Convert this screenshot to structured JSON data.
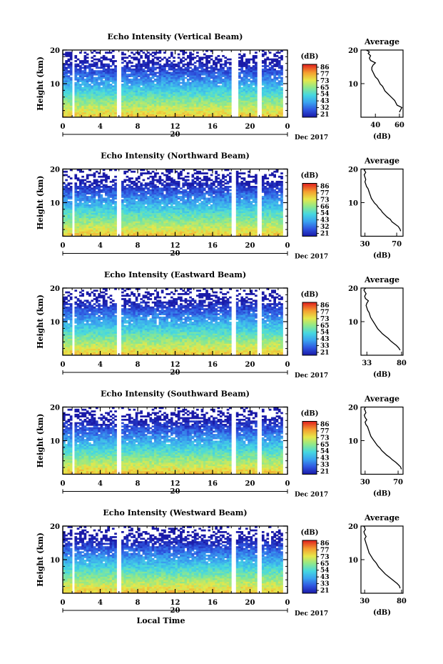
{
  "chart_data": [
    {
      "type": "heatmap",
      "title": "Echo Intensity (Vertical Beam)",
      "ylabel": "Height (km)",
      "x_ticks": [
        "0",
        "4",
        "8",
        "12",
        "16",
        "20",
        "0"
      ],
      "ylim": [
        0,
        20
      ],
      "y_ticks": [
        "20",
        "10"
      ],
      "date_tick": "20",
      "date_label": "Dec 2017",
      "data_gaps_hours": [
        [
          1.0,
          1.3
        ],
        [
          5.8,
          6.2
        ],
        [
          18.1,
          18.8
        ],
        [
          20.7,
          21.3
        ],
        [
          23.6,
          23.9
        ]
      ],
      "colorbar": {
        "label": "(dB)",
        "ticks": [
          "86",
          "77",
          "73",
          "65",
          "54",
          "43",
          "32",
          "21"
        ]
      },
      "average_profile": {
        "title": "Average",
        "xlabel": "(dB)",
        "x_ticks": [
          "40",
          "60"
        ],
        "xlim": [
          28,
          63
        ],
        "y_ticks": [
          "20",
          "10"
        ],
        "x": [
          60,
          61,
          62,
          58,
          57,
          56,
          54,
          52,
          50,
          48,
          47,
          46,
          44,
          43,
          42,
          40,
          39,
          38,
          37,
          37,
          38,
          40,
          36,
          35,
          36,
          34,
          35,
          34,
          33,
          34
        ],
        "y": [
          1.5,
          2.2,
          2.9,
          3.6,
          4.3,
          5.0,
          5.7,
          6.4,
          7.1,
          7.8,
          8.5,
          9.2,
          9.9,
          10.6,
          11.3,
          12.0,
          12.7,
          13.4,
          14.1,
          14.8,
          15.5,
          16.2,
          16.9,
          17.6,
          18.3,
          19.0,
          19.4,
          19.7,
          19.9,
          20.0
        ]
      }
    },
    {
      "type": "heatmap",
      "title": "Echo Intensity (Northward Beam)",
      "ylabel": "Height (km)",
      "x_ticks": [
        "0",
        "4",
        "8",
        "12",
        "16",
        "20",
        "0"
      ],
      "ylim": [
        0,
        20
      ],
      "y_ticks": [
        "20",
        "10"
      ],
      "date_tick": "20",
      "date_label": "Dec 2017",
      "data_gaps_hours": [
        [
          1.0,
          1.3
        ],
        [
          5.8,
          6.2
        ],
        [
          17.9,
          18.6
        ],
        [
          20.7,
          21.3
        ],
        [
          23.6,
          23.9
        ]
      ],
      "colorbar": {
        "label": "(dB)",
        "ticks": [
          "86",
          "77",
          "73",
          "66",
          "54",
          "43",
          "32",
          "21"
        ]
      },
      "average_profile": {
        "title": "Average",
        "xlabel": "(dB)",
        "x_ticks": [
          "30",
          "70"
        ],
        "xlim": [
          25,
          78
        ],
        "y_ticks": [
          "20",
          "10"
        ],
        "x": [
          75,
          74,
          72,
          68,
          64,
          62,
          58,
          55,
          52,
          50,
          47,
          45,
          42,
          40,
          38,
          37,
          36,
          35,
          34,
          32,
          31,
          30,
          31,
          30,
          29,
          31,
          30,
          29,
          30,
          30
        ],
        "y": [
          1.5,
          2.2,
          2.9,
          3.6,
          4.3,
          5.0,
          5.7,
          6.4,
          7.1,
          7.8,
          8.5,
          9.2,
          9.9,
          10.6,
          11.3,
          12.0,
          12.7,
          13.4,
          14.1,
          14.8,
          15.5,
          16.2,
          16.9,
          17.6,
          18.3,
          19.0,
          19.4,
          19.7,
          19.9,
          20.0
        ]
      }
    },
    {
      "type": "heatmap",
      "title": "Echo Intensity (Eastward Beam)",
      "ylabel": "Height (km)",
      "x_ticks": [
        "0",
        "4",
        "8",
        "12",
        "16",
        "20",
        "0"
      ],
      "ylim": [
        0,
        20
      ],
      "y_ticks": [
        "20",
        "10"
      ],
      "date_tick": "20",
      "date_label": "Dec 2017",
      "data_gaps_hours": [
        [
          1.0,
          1.3
        ],
        [
          5.8,
          6.2
        ],
        [
          17.9,
          18.6
        ],
        [
          20.7,
          21.3
        ],
        [
          23.6,
          23.9
        ]
      ],
      "colorbar": {
        "label": "(dB)",
        "ticks": [
          "86",
          "77",
          "73",
          "65",
          "54",
          "43",
          "33",
          "21"
        ]
      },
      "average_profile": {
        "title": "Average",
        "xlabel": "(dB)",
        "x_ticks": [
          "33",
          "80"
        ],
        "xlim": [
          25,
          82
        ],
        "y_ticks": [
          "20",
          "10"
        ],
        "x": [
          78,
          76,
          73,
          69,
          65,
          62,
          58,
          54,
          51,
          48,
          46,
          44,
          42,
          40,
          38,
          37,
          36,
          34,
          33,
          32,
          33,
          35,
          31,
          30,
          32,
          30,
          29,
          30,
          31,
          30
        ],
        "y": [
          1.5,
          2.2,
          2.9,
          3.6,
          4.3,
          5.0,
          5.7,
          6.4,
          7.1,
          7.8,
          8.5,
          9.2,
          9.9,
          10.6,
          11.3,
          12.0,
          12.7,
          13.4,
          14.1,
          14.8,
          15.5,
          16.2,
          16.9,
          17.6,
          18.3,
          19.0,
          19.4,
          19.7,
          19.9,
          20.0
        ]
      }
    },
    {
      "type": "heatmap",
      "title": "Echo Intensity (Southward Beam)",
      "ylabel": "Height (km)",
      "x_ticks": [
        "0",
        "4",
        "8",
        "12",
        "16",
        "20",
        "0"
      ],
      "ylim": [
        0,
        20
      ],
      "y_ticks": [
        "20",
        "10"
      ],
      "date_tick": "20",
      "date_label": "Dec 2017",
      "data_gaps_hours": [
        [
          1.0,
          1.3
        ],
        [
          5.8,
          6.2
        ],
        [
          17.9,
          18.6
        ],
        [
          20.7,
          21.3
        ],
        [
          23.6,
          23.9
        ]
      ],
      "colorbar": {
        "label": "(dB)",
        "ticks": [
          "86",
          "77",
          "73",
          "65",
          "54",
          "43",
          "33",
          "21"
        ]
      },
      "average_profile": {
        "title": "Average",
        "xlabel": "(dB)",
        "x_ticks": [
          "30",
          "70"
        ],
        "xlim": [
          25,
          76
        ],
        "y_ticks": [
          "20",
          "10"
        ],
        "x": [
          74,
          73,
          70,
          67,
          63,
          60,
          56,
          53,
          50,
          48,
          45,
          43,
          41,
          39,
          37,
          36,
          35,
          34,
          33,
          31,
          30,
          32,
          30,
          29,
          31,
          30,
          29,
          30,
          30,
          30
        ],
        "y": [
          1.5,
          2.2,
          2.9,
          3.6,
          4.3,
          5.0,
          5.7,
          6.4,
          7.1,
          7.8,
          8.5,
          9.2,
          9.9,
          10.6,
          11.3,
          12.0,
          12.7,
          13.4,
          14.1,
          14.8,
          15.5,
          16.2,
          16.9,
          17.6,
          18.3,
          19.0,
          19.4,
          19.7,
          19.9,
          20.0
        ]
      }
    },
    {
      "type": "heatmap",
      "title": "Echo Intensity (Westward Beam)",
      "ylabel": "Height (km)",
      "xlabel": "Local Time",
      "x_ticks": [
        "0",
        "4",
        "8",
        "12",
        "16",
        "20",
        "0"
      ],
      "ylim": [
        0,
        20
      ],
      "y_ticks": [
        "20",
        "10"
      ],
      "date_tick": "20",
      "date_label": "Dec 2017",
      "data_gaps_hours": [
        [
          1.0,
          1.3
        ],
        [
          5.8,
          6.2
        ],
        [
          17.9,
          18.6
        ],
        [
          20.7,
          21.3
        ],
        [
          23.6,
          23.9
        ]
      ],
      "colorbar": {
        "label": "(dB)",
        "ticks": [
          "86",
          "77",
          "73",
          "65",
          "54",
          "43",
          "33",
          "21"
        ]
      },
      "average_profile": {
        "title": "Average",
        "xlabel": "(dB)",
        "x_ticks": [
          "30",
          "80"
        ],
        "xlim": [
          25,
          82
        ],
        "y_ticks": [
          "20",
          "10"
        ],
        "x": [
          78,
          77,
          74,
          70,
          66,
          62,
          58,
          55,
          52,
          49,
          47,
          45,
          42,
          40,
          38,
          36,
          35,
          34,
          33,
          32,
          31,
          30,
          32,
          30,
          29,
          31,
          30,
          30,
          29,
          30
        ],
        "y": [
          1.5,
          2.2,
          2.9,
          3.6,
          4.3,
          5.0,
          5.7,
          6.4,
          7.1,
          7.8,
          8.5,
          9.2,
          9.9,
          10.6,
          11.3,
          12.0,
          12.7,
          13.4,
          14.1,
          14.8,
          15.5,
          16.2,
          16.9,
          17.6,
          18.3,
          19.0,
          19.4,
          19.7,
          19.9,
          20.0
        ]
      }
    }
  ]
}
